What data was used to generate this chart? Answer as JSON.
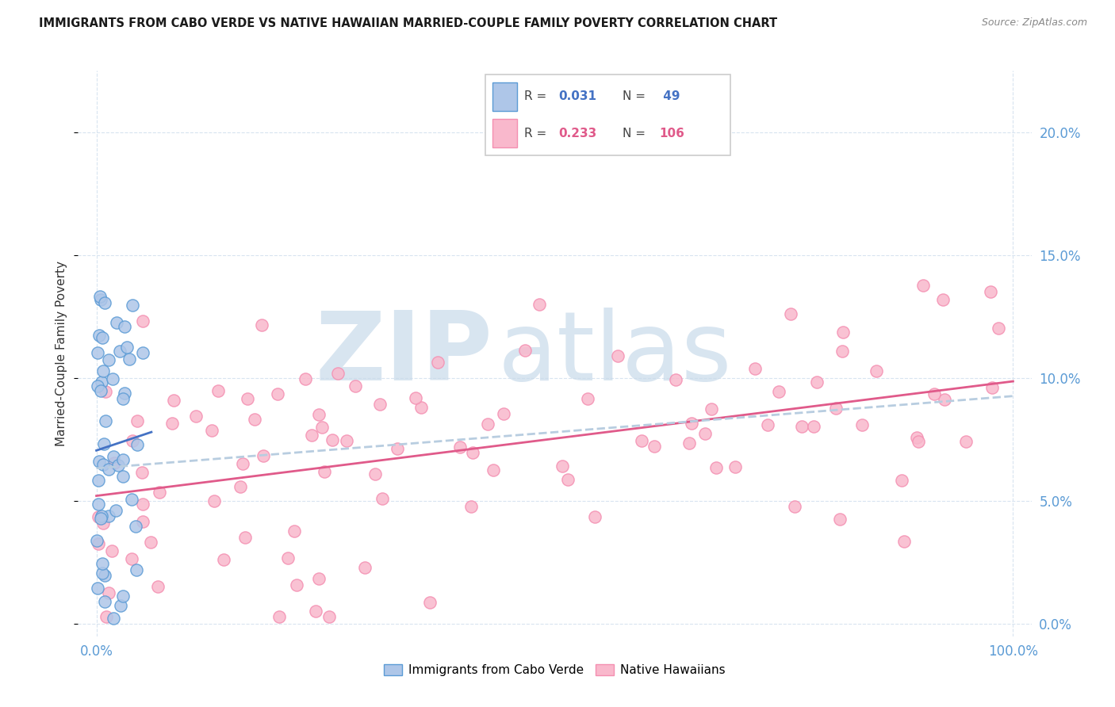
{
  "title": "IMMIGRANTS FROM CABO VERDE VS NATIVE HAWAIIAN MARRIED-COUPLE FAMILY POVERTY CORRELATION CHART",
  "source": "Source: ZipAtlas.com",
  "ylabel": "Married-Couple Family Poverty",
  "cabo_verde_color": "#aec6e8",
  "native_hawaiian_color": "#f9b8cc",
  "cabo_verde_edge_color": "#5b9bd5",
  "native_hawaiian_edge_color": "#f48fb1",
  "cabo_verde_line_color": "#4472c4",
  "native_hawaiian_line_color": "#e05a8a",
  "trend_dash_color": "#b8cde0",
  "tick_color": "#5b9bd5",
  "grid_color": "#d8e4f0",
  "watermark_color": "#c8daea",
  "legend_text_color": "#555555",
  "r1_val": "0.031",
  "n1_val": "49",
  "r2_val": "0.233",
  "n2_val": "106",
  "cabo_verde_label": "Immigrants from Cabo Verde",
  "native_hawaiians_label": "Native Hawaiians",
  "xmin": 0,
  "xmax": 100,
  "ymin": 0,
  "ymax": 22,
  "yticks": [
    0,
    5,
    10,
    15,
    20
  ],
  "ytick_labels": [
    "0.0%",
    "5.0%",
    "10.0%",
    "15.0%",
    "20.0%"
  ],
  "xtick_left": "0.0%",
  "xtick_right": "100.0%"
}
